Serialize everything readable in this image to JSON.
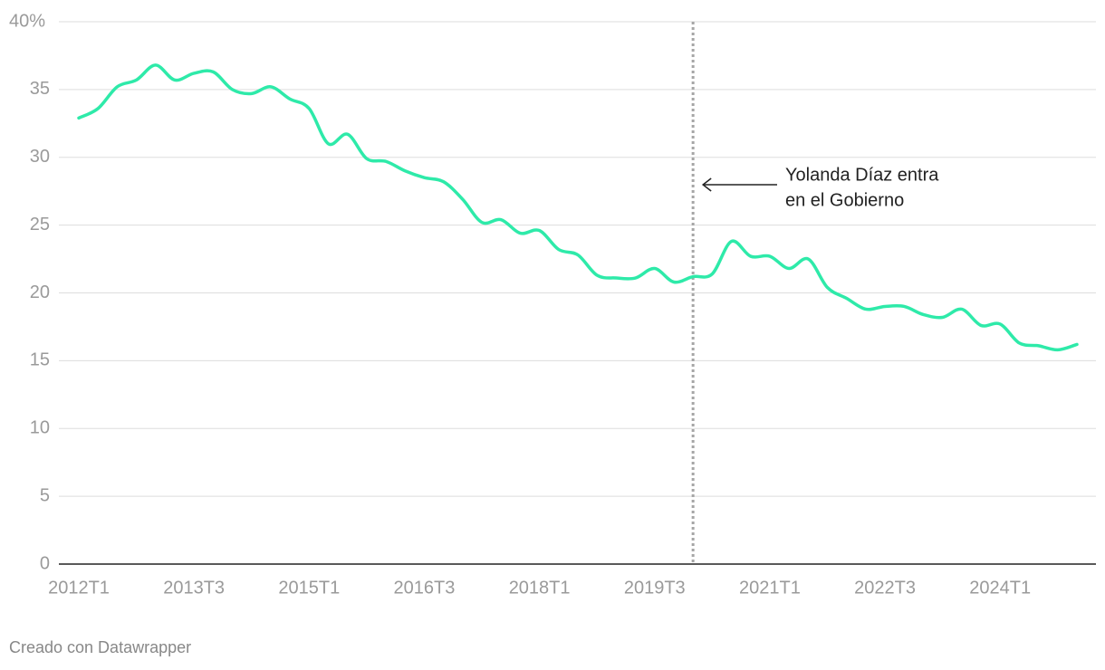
{
  "chart_data": {
    "type": "line",
    "categories": [
      "2012T1",
      null,
      null,
      null,
      null,
      null,
      "2013T3",
      null,
      null,
      null,
      null,
      null,
      "2015T1",
      null,
      null,
      null,
      null,
      null,
      "2016T3",
      null,
      null,
      null,
      null,
      null,
      "2018T1",
      null,
      null,
      null,
      null,
      null,
      "2019T3",
      null,
      null,
      null,
      null,
      null,
      "2021T1",
      null,
      null,
      null,
      null,
      null,
      "2022T3",
      null,
      null,
      null,
      null,
      null,
      "2024T1",
      null,
      null,
      null,
      null
    ],
    "values": [
      32.9,
      33.6,
      35.2,
      35.7,
      36.8,
      35.7,
      36.2,
      36.3,
      35.0,
      34.7,
      35.2,
      34.3,
      33.6,
      31.0,
      31.7,
      29.9,
      29.7,
      29.0,
      28.5,
      28.2,
      26.9,
      25.2,
      25.4,
      24.4,
      24.6,
      23.2,
      22.8,
      21.3,
      21.1,
      21.1,
      21.8,
      20.8,
      21.2,
      21.4,
      23.8,
      22.7,
      22.7,
      21.8,
      22.5,
      20.4,
      19.6,
      18.8,
      19.0,
      19.0,
      18.4,
      18.2,
      18.8,
      17.6,
      17.7,
      16.3,
      16.1,
      15.8,
      16.2
    ],
    "color": "#2eeaa9",
    "ylim": [
      0,
      40
    ],
    "yticks": [
      0,
      5,
      10,
      15,
      20,
      25,
      30,
      35,
      {
        "value": 40,
        "label": "40%"
      }
    ],
    "grid": true,
    "annotation": {
      "index": 32,
      "text": [
        "Yolanda Díaz entra",
        "en el Gobierno"
      ]
    },
    "source": "Creado con Datawrapper"
  }
}
